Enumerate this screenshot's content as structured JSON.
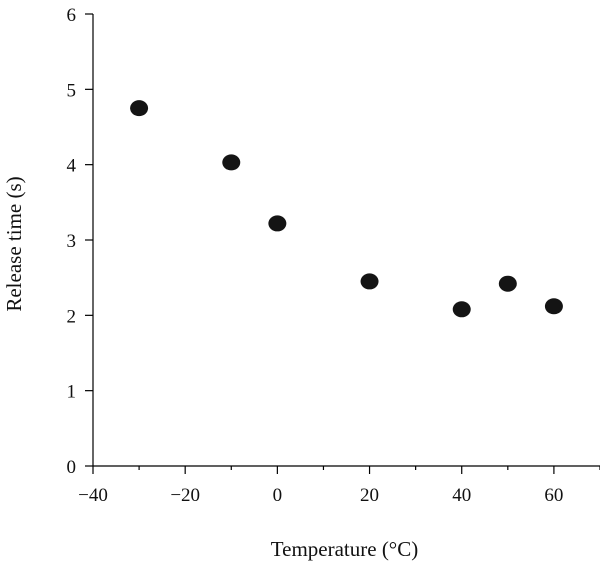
{
  "chart_data": {
    "type": "scatter",
    "title": "",
    "xlabel": "Temperature (°C)",
    "ylabel": "Release time (s)",
    "xlim": [
      -40,
      70
    ],
    "ylim": [
      0,
      6
    ],
    "x_ticks": [
      -40,
      -20,
      0,
      20,
      40,
      60
    ],
    "x_tick_labels": [
      "−40",
      "−20",
      "0",
      "20",
      "40",
      "60"
    ],
    "x_minor_ticks": [
      -30,
      -10,
      10,
      30,
      50,
      70
    ],
    "y_ticks": [
      0,
      1,
      2,
      3,
      4,
      5,
      6
    ],
    "y_tick_labels": [
      "0",
      "1",
      "2",
      "3",
      "4",
      "5",
      "6"
    ],
    "grid": false,
    "legend": false,
    "marker_color": "#141414",
    "series": [
      {
        "x": [
          -30,
          -10,
          0,
          20,
          40,
          50,
          60
        ],
        "y": [
          4.75,
          4.03,
          3.22,
          2.45,
          2.08,
          2.42,
          2.12
        ]
      }
    ]
  }
}
